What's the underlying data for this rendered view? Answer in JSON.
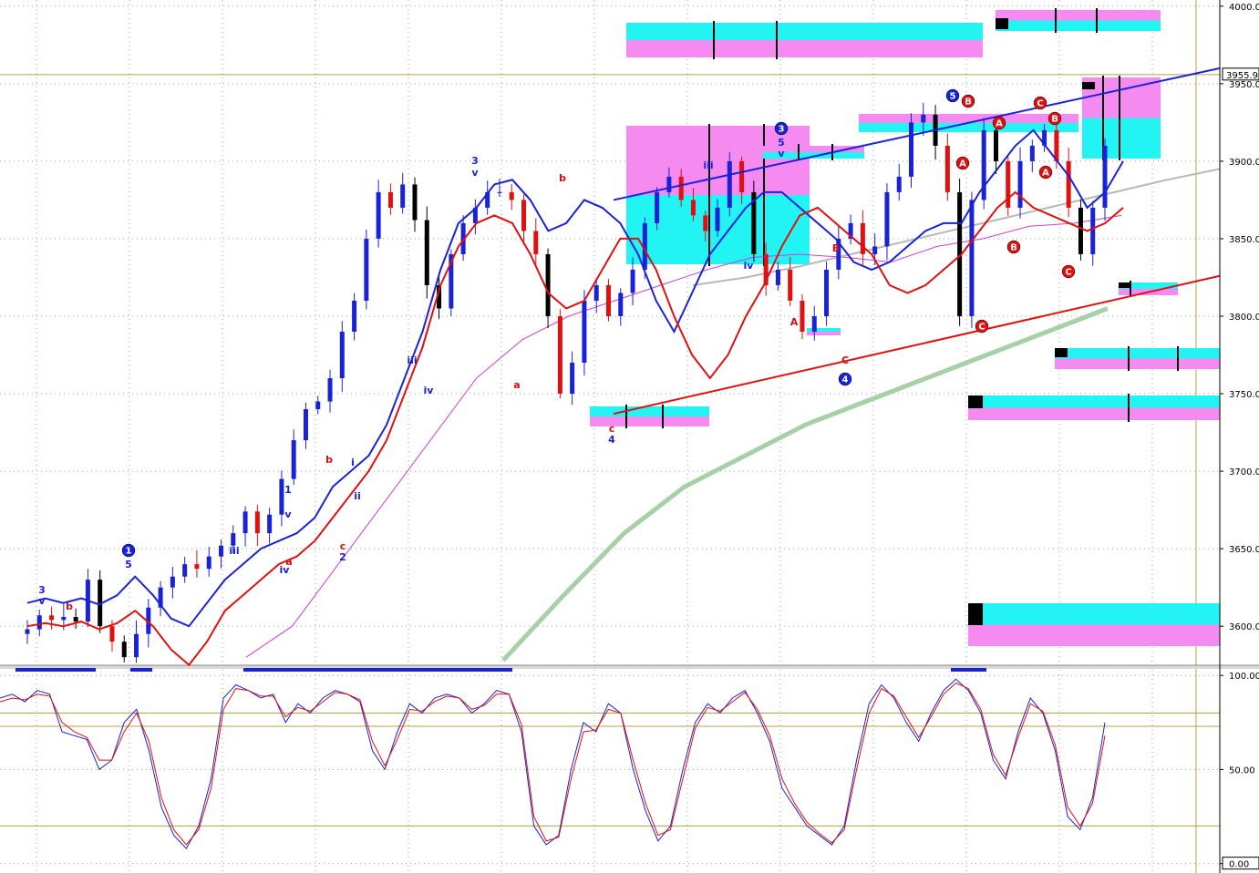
{
  "chart_data": [
    {
      "type": "candlestick",
      "title": "",
      "y_axis": {
        "ticks": [
          "4000.00",
          "3950.00",
          "3900.00",
          "3850.00",
          "3800.00",
          "3750.00",
          "3700.00",
          "3650.00",
          "3600.00"
        ],
        "tick_values": [
          4000,
          3950,
          3900,
          3850,
          3800,
          3750,
          3700,
          3650,
          3600
        ],
        "ylim": [
          3576,
          4004
        ],
        "last_price_label": "3955.9",
        "last_price": 3955.9
      },
      "grid": true,
      "colors": {
        "up_candle": "#1a22d8",
        "down_candle": "#e01010",
        "neutral_candle": "#000000",
        "band_upper": "#1a22d8",
        "band_lower": "#e01010",
        "ma_magenta": "#d040d0",
        "ma_green": "#a8d0a8",
        "ma_gray": "#b8b8b8",
        "trend_upper": "#1a22d8",
        "trend_lower": "#e01010",
        "zone_cyan": "#22f4f4",
        "zone_pink": "#f58af0",
        "reference_line": "#b8a040"
      },
      "series": [
        {
          "name": "price_close_samples",
          "values": [
            3598,
            3607,
            3604,
            3606,
            3603,
            3630,
            3600,
            3590,
            3580,
            3595,
            3612,
            3625,
            3632,
            3640,
            3637,
            3645,
            3652,
            3660,
            3674,
            3660,
            3672,
            3695,
            3720,
            3740,
            3745,
            3760,
            3790,
            3810,
            3850,
            3880,
            3870,
            3885,
            3862,
            3820,
            3805,
            3840,
            3860,
            3870,
            3880,
            3880,
            3875,
            3855,
            3840,
            3800,
            3750,
            3770,
            3810,
            3820,
            3800,
            3815,
            3830,
            3860,
            3880,
            3890,
            3875,
            3865,
            3855,
            3870,
            3900,
            3880,
            3840,
            3820,
            3830,
            3810,
            3790,
            3800,
            3830,
            3850,
            3860,
            3840,
            3845,
            3880,
            3890,
            3925,
            3930,
            3910,
            3880,
            3800,
            3875,
            3920,
            3900,
            3870,
            3900,
            3910,
            3920,
            3900,
            3870,
            3840,
            3870,
            3910
          ]
        },
        {
          "name": "band_upper_samples",
          "values": [
            3615,
            3618,
            3615,
            3618,
            3614,
            3620,
            3632,
            3620,
            3605,
            3600,
            3615,
            3630,
            3640,
            3650,
            3655,
            3660,
            3670,
            3690,
            3700,
            3710,
            3730,
            3760,
            3790,
            3830,
            3860,
            3870,
            3885,
            3888,
            3875,
            3855,
            3860,
            3875,
            3870,
            3860,
            3840,
            3810,
            3790,
            3815,
            3840,
            3855,
            3870,
            3880,
            3880,
            3870,
            3860,
            3850,
            3835,
            3830,
            3835,
            3845,
            3855,
            3860,
            3860,
            3880,
            3895,
            3910,
            3920,
            3905,
            3890,
            3870,
            3880,
            3900
          ]
        },
        {
          "name": "band_lower_samples",
          "values": [
            3600,
            3602,
            3600,
            3603,
            3598,
            3602,
            3610,
            3600,
            3585,
            3575,
            3590,
            3610,
            3620,
            3630,
            3640,
            3645,
            3655,
            3670,
            3685,
            3700,
            3720,
            3750,
            3780,
            3820,
            3845,
            3860,
            3865,
            3860,
            3840,
            3815,
            3805,
            3810,
            3830,
            3850,
            3850,
            3830,
            3800,
            3775,
            3760,
            3775,
            3800,
            3820,
            3845,
            3865,
            3870,
            3860,
            3850,
            3840,
            3820,
            3815,
            3820,
            3830,
            3840,
            3855,
            3870,
            3880,
            3870,
            3865,
            3860,
            3855,
            3860,
            3870
          ]
        },
        {
          "name": "ma_magenta_samples",
          "values": [
            3580,
            3600,
            3640,
            3680,
            3720,
            3760,
            3785,
            3800,
            3810,
            3820,
            3830,
            3838,
            3840,
            3838,
            3835,
            3845,
            3850,
            3858,
            3860,
            3865
          ]
        },
        {
          "name": "ma_gray_samples",
          "values": [
            3820,
            3825,
            3832,
            3840,
            3848,
            3856,
            3864,
            3872,
            3880,
            3888,
            3895
          ]
        },
        {
          "name": "ma_green_samples",
          "values": [
            3578,
            3620,
            3660,
            3690,
            3710,
            3730,
            3745,
            3760,
            3775,
            3790,
            3805
          ]
        }
      ],
      "trendlines": [
        {
          "name": "upper_channel",
          "from": 3875,
          "to": 3960
        },
        {
          "name": "lower_channel",
          "from": 3737,
          "to": 3826
        }
      ],
      "zones_price_levels": [
        {
          "name": "zone_top_mid",
          "level": 3985
        },
        {
          "name": "zone_top_right",
          "level": 3997
        },
        {
          "name": "zone_right_3950",
          "level": 3948
        },
        {
          "name": "zone_mid_3920",
          "level": 3915
        },
        {
          "name": "zone_3925",
          "level": 3925
        },
        {
          "name": "zone_3820",
          "level": 3817
        },
        {
          "name": "zone_3775",
          "level": 3775
        },
        {
          "name": "zone_3750",
          "level": 3747
        },
        {
          "name": "zone_3740",
          "level": 3740
        },
        {
          "name": "zone_3600",
          "level": 3606
        },
        {
          "name": "zone_3805",
          "level": 3803
        }
      ],
      "annotations": [
        {
          "text": "3",
          "color": "blue"
        },
        {
          "text": "v",
          "color": "blue"
        },
        {
          "text": "b",
          "color": "red"
        },
        {
          "text": "5",
          "color": "blue"
        },
        {
          "text": "1",
          "color": "white",
          "circle": "blue"
        },
        {
          "text": "iii",
          "color": "blue"
        },
        {
          "text": "1",
          "color": "blue"
        },
        {
          "text": "v",
          "color": "blue"
        },
        {
          "text": "iv",
          "color": "blue"
        },
        {
          "text": "a",
          "color": "red"
        },
        {
          "text": "b",
          "color": "red"
        },
        {
          "text": "i",
          "color": "blue"
        },
        {
          "text": "ii",
          "color": "blue"
        },
        {
          "text": "c",
          "color": "red"
        },
        {
          "text": "2",
          "color": "blue"
        },
        {
          "text": "iii",
          "color": "blue"
        },
        {
          "text": "iv",
          "color": "blue"
        },
        {
          "text": "3",
          "color": "blue"
        },
        {
          "text": "v",
          "color": "blue"
        },
        {
          "text": "b",
          "color": "red"
        },
        {
          "text": "a",
          "color": "red"
        },
        {
          "text": "c",
          "color": "red"
        },
        {
          "text": "4",
          "color": "blue"
        },
        {
          "text": "iii",
          "color": "blue"
        },
        {
          "text": "iv",
          "color": "blue"
        },
        {
          "text": "3",
          "color": "white",
          "circle": "blue"
        },
        {
          "text": "5",
          "color": "blue"
        },
        {
          "text": "v",
          "color": "blue"
        },
        {
          "text": "A",
          "color": "red"
        },
        {
          "text": "B",
          "color": "red"
        },
        {
          "text": "C",
          "color": "red"
        },
        {
          "text": "4",
          "color": "white",
          "circle": "blue"
        },
        {
          "text": "5",
          "color": "white",
          "circle": "blue"
        },
        {
          "text": "B",
          "color": "white",
          "circle": "red"
        },
        {
          "text": "A",
          "color": "white",
          "circle": "red"
        },
        {
          "text": "A",
          "color": "white",
          "circle": "red"
        },
        {
          "text": "C",
          "color": "white",
          "circle": "red"
        },
        {
          "text": "B",
          "color": "white",
          "circle": "red"
        },
        {
          "text": "C",
          "color": "white",
          "circle": "red"
        },
        {
          "text": "B",
          "color": "white",
          "circle": "red"
        },
        {
          "text": "A",
          "color": "white",
          "circle": "red"
        },
        {
          "text": "C",
          "color": "white",
          "circle": "red"
        }
      ]
    },
    {
      "type": "line",
      "title": "",
      "y_axis": {
        "ticks": [
          "100.00",
          "50.00",
          "0.00"
        ],
        "tick_values": [
          100,
          50,
          0
        ],
        "ylim": [
          -5,
          103
        ]
      },
      "reference_levels": [
        80,
        73,
        20
      ],
      "series": [
        {
          "name": "fast",
          "color": "#1a22d8",
          "values": [
            88,
            90,
            86,
            92,
            90,
            70,
            68,
            66,
            50,
            55,
            75,
            82,
            60,
            30,
            15,
            8,
            20,
            45,
            88,
            95,
            92,
            88,
            90,
            75,
            85,
            80,
            88,
            92,
            90,
            86,
            60,
            50,
            70,
            85,
            80,
            88,
            90,
            88,
            80,
            85,
            92,
            90,
            70,
            20,
            10,
            15,
            50,
            75,
            70,
            85,
            80,
            50,
            28,
            12,
            20,
            50,
            75,
            85,
            80,
            88,
            92,
            80,
            65,
            40,
            30,
            20,
            15,
            10,
            20,
            55,
            85,
            95,
            88,
            75,
            65,
            80,
            92,
            98,
            92,
            80,
            55,
            45,
            70,
            88,
            80,
            60,
            25,
            18,
            35,
            75
          ]
        },
        {
          "name": "slow",
          "color": "#e01010",
          "values": [
            86,
            88,
            87,
            90,
            89,
            75,
            70,
            67,
            55,
            55,
            70,
            80,
            65,
            35,
            18,
            10,
            18,
            40,
            82,
            93,
            92,
            89,
            89,
            78,
            83,
            81,
            86,
            91,
            90,
            87,
            65,
            52,
            66,
            82,
            81,
            86,
            89,
            88,
            82,
            84,
            90,
            90,
            74,
            25,
            12,
            14,
            45,
            70,
            71,
            82,
            80,
            55,
            32,
            15,
            18,
            45,
            72,
            83,
            81,
            86,
            91,
            82,
            68,
            45,
            32,
            22,
            16,
            11,
            18,
            50,
            80,
            93,
            89,
            78,
            67,
            78,
            90,
            96,
            93,
            82,
            58,
            47,
            67,
            85,
            81,
            63,
            30,
            20,
            32,
            68
          ]
        }
      ]
    }
  ]
}
